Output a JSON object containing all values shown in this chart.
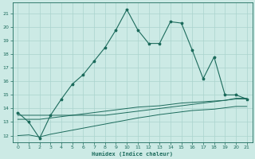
{
  "xlabel": "Humidex (Indice chaleur)",
  "x_values": [
    0,
    1,
    2,
    3,
    4,
    5,
    6,
    7,
    8,
    9,
    10,
    11,
    12,
    13,
    14,
    15,
    16,
    17,
    18,
    19,
    20,
    21
  ],
  "line1_y": [
    13.7,
    13.0,
    11.8,
    13.5,
    14.7,
    15.8,
    16.5,
    17.5,
    18.5,
    19.8,
    21.3,
    19.8,
    18.8,
    18.8,
    20.4,
    20.3,
    18.3,
    16.2,
    17.8,
    15.0,
    15.0,
    14.7
  ],
  "line_flat1": [
    13.5,
    13.5,
    13.5,
    13.5,
    13.5,
    13.5,
    13.5,
    13.5,
    13.5,
    13.6,
    13.7,
    13.8,
    13.9,
    14.0,
    14.1,
    14.2,
    14.3,
    14.4,
    14.5,
    14.6,
    14.75,
    14.75
  ],
  "line_flat2": [
    13.2,
    13.2,
    13.2,
    13.3,
    13.4,
    13.5,
    13.6,
    13.7,
    13.8,
    13.9,
    14.0,
    14.1,
    14.15,
    14.2,
    14.3,
    14.4,
    14.45,
    14.5,
    14.55,
    14.6,
    14.7,
    14.7
  ],
  "line_flat3": [
    12.0,
    12.05,
    11.9,
    12.1,
    12.25,
    12.4,
    12.55,
    12.7,
    12.85,
    13.0,
    13.15,
    13.3,
    13.42,
    13.55,
    13.65,
    13.75,
    13.85,
    13.9,
    13.95,
    14.05,
    14.15,
    14.15
  ],
  "line_color": "#1c6b5c",
  "bg_color": "#cceae5",
  "grid_color": "#aad4ce",
  "ylim": [
    11.5,
    21.8
  ],
  "xlim": [
    -0.5,
    21.5
  ],
  "yticks": [
    12,
    13,
    14,
    15,
    16,
    17,
    18,
    19,
    20,
    21
  ],
  "xticks": [
    0,
    1,
    2,
    3,
    4,
    5,
    6,
    7,
    8,
    9,
    10,
    11,
    12,
    13,
    14,
    15,
    16,
    17,
    18,
    19,
    20,
    21
  ]
}
